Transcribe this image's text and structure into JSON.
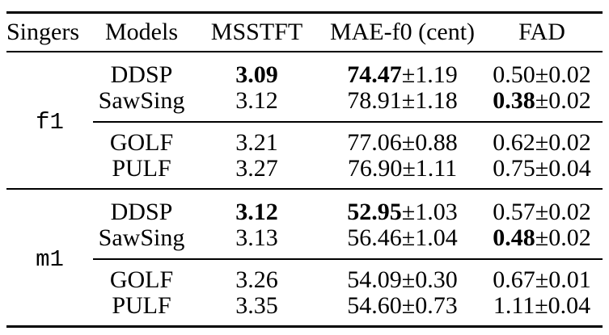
{
  "colors": {
    "text": "#000000",
    "background": "#ffffff",
    "rule": "#000000"
  },
  "pm": "±",
  "columns": [
    "Singers",
    "Models",
    "MSSTFT",
    "MAE-f0 (cent)",
    "FAD"
  ],
  "groups": [
    {
      "singer": "f1",
      "rows": [
        {
          "model": "DDSP",
          "msstft": "3.09",
          "msstft_bold": true,
          "mae_main": "74.47",
          "mae_bold": true,
          "mae_err": "1.19",
          "fad_main": "0.50",
          "fad_bold": false,
          "fad_err": "0.02"
        },
        {
          "model": "SawSing",
          "msstft": "3.12",
          "msstft_bold": false,
          "mae_main": "78.91",
          "mae_bold": false,
          "mae_err": "1.18",
          "fad_main": "0.38",
          "fad_bold": true,
          "fad_err": "0.02"
        },
        {
          "model": "GOLF",
          "msstft": "3.21",
          "msstft_bold": false,
          "mae_main": "77.06",
          "mae_bold": false,
          "mae_err": "0.88",
          "fad_main": "0.62",
          "fad_bold": false,
          "fad_err": "0.02"
        },
        {
          "model": "PULF",
          "msstft": "3.27",
          "msstft_bold": false,
          "mae_main": "76.90",
          "mae_bold": false,
          "mae_err": "1.11",
          "fad_main": "0.75",
          "fad_bold": false,
          "fad_err": "0.04"
        }
      ]
    },
    {
      "singer": "m1",
      "rows": [
        {
          "model": "DDSP",
          "msstft": "3.12",
          "msstft_bold": true,
          "mae_main": "52.95",
          "mae_bold": true,
          "mae_err": "1.03",
          "fad_main": "0.57",
          "fad_bold": false,
          "fad_err": "0.02"
        },
        {
          "model": "SawSing",
          "msstft": "3.13",
          "msstft_bold": false,
          "mae_main": "56.46",
          "mae_bold": false,
          "mae_err": "1.04",
          "fad_main": "0.48",
          "fad_bold": true,
          "fad_err": "0.02"
        },
        {
          "model": "GOLF",
          "msstft": "3.26",
          "msstft_bold": false,
          "mae_main": "54.09",
          "mae_bold": false,
          "mae_err": "0.30",
          "fad_main": "0.67",
          "fad_bold": false,
          "fad_err": "0.01"
        },
        {
          "model": "PULF",
          "msstft": "3.35",
          "msstft_bold": false,
          "mae_main": "54.60",
          "mae_bold": false,
          "mae_err": "0.73",
          "fad_main": "1.11",
          "fad_bold": false,
          "fad_err": "0.04"
        }
      ]
    }
  ]
}
